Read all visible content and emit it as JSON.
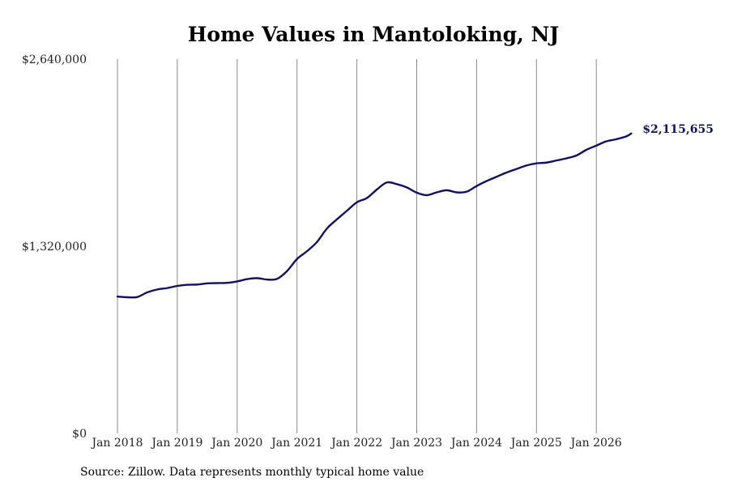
{
  "chart_data": {
    "type": "line",
    "title": "Home Values in Mantoloking, NJ",
    "y_tick_labels": [
      "$0",
      "$1,320,000",
      "$2,640,000"
    ],
    "y_ticks": [
      0,
      1320000,
      2640000
    ],
    "ylim": [
      0,
      2640000
    ],
    "x_tick_labels": [
      "Jan 2018",
      "Jan 2019",
      "Jan 2020",
      "Jan 2021",
      "Jan 2022",
      "Jan 2023",
      "Jan 2024",
      "Jan 2025",
      "Jan 2026"
    ],
    "grid": "vertical",
    "line_color": "#131060",
    "end_label": "$2,115,655",
    "series": [
      {
        "x": [
          "Jan 2018",
          "Mar 2018",
          "May 2018",
          "Jul 2018",
          "Sep 2018",
          "Nov 2018",
          "Jan 2019",
          "Mar 2019",
          "May 2019",
          "Jul 2019",
          "Sep 2019",
          "Nov 2019",
          "Jan 2020",
          "Mar 2020",
          "May 2020",
          "Jul 2020",
          "Sep 2020",
          "Nov 2020",
          "Jan 2021",
          "Mar 2021",
          "May 2021",
          "Jul 2021",
          "Sep 2021",
          "Nov 2021",
          "Jan 2022",
          "Mar 2022",
          "May 2022",
          "Jul 2022",
          "Sep 2022",
          "Nov 2022",
          "Jan 2023",
          "Mar 2023",
          "May 2023",
          "Jul 2023",
          "Sep 2023",
          "Nov 2023",
          "Jan 2024",
          "Mar 2024",
          "May 2024",
          "Jul 2024",
          "Sep 2024",
          "Nov 2024",
          "Jan 2025",
          "Mar 2025",
          "May 2025",
          "Jul 2025",
          "Sep 2025",
          "Nov 2025",
          "Jan 2026",
          "Mar 2026",
          "May 2026",
          "Jul 2026",
          "Aug 2026"
        ],
        "values": [
          965000,
          960000,
          962000,
          995000,
          1015000,
          1025000,
          1040000,
          1048000,
          1050000,
          1058000,
          1060000,
          1062000,
          1072000,
          1088000,
          1095000,
          1085000,
          1090000,
          1145000,
          1230000,
          1285000,
          1350000,
          1445000,
          1510000,
          1570000,
          1630000,
          1660000,
          1720000,
          1770000,
          1758000,
          1735000,
          1698000,
          1680000,
          1700000,
          1715000,
          1700000,
          1705000,
          1745000,
          1780000,
          1810000,
          1840000,
          1865000,
          1890000,
          1905000,
          1910000,
          1925000,
          1940000,
          1960000,
          2000000,
          2030000,
          2060000,
          2075000,
          2095000,
          2115655
        ]
      }
    ]
  },
  "source_text": "Source: Zillow. Data represents monthly typical home value"
}
